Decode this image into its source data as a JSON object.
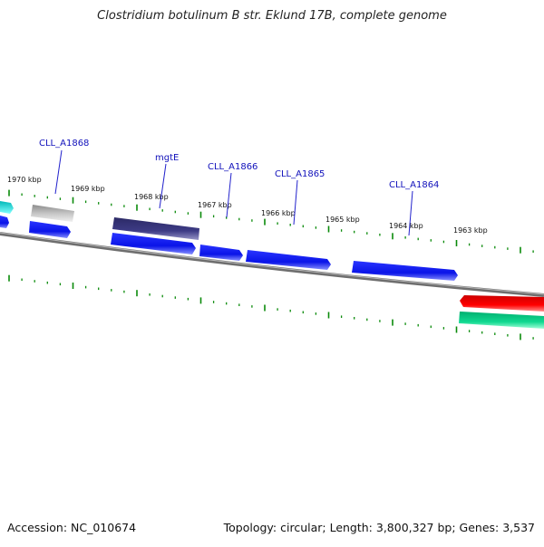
{
  "title": "Clostridium botulinum B str. Eklund 17B, complete genome",
  "footer": {
    "accession": "Accession: NC_010674",
    "summary": "Topology: circular; Length: 3,800,327 bp; Genes: 3,537"
  },
  "kbp_labels": [
    "1970 kbp",
    "1969 kbp",
    "1968 kbp",
    "1967 kbp",
    "1966 kbp",
    "1965 kbp",
    "1964 kbp",
    "1963 kbp"
  ],
  "gene_labels": [
    "CLL_A1868",
    "mgtE",
    "CLL_A1866",
    "CLL_A1865",
    "CLL_A1864"
  ],
  "colors": {
    "gene_blue": "#0a14e8",
    "gene_dark": "#3d3b85",
    "gene_gray": "#b0b0b0",
    "gene_cyan": "#00e0e0",
    "gene_red": "#ee0000",
    "gene_green": "#10d890",
    "tick_green": "#0a8a0a",
    "backbone": "#777777"
  }
}
